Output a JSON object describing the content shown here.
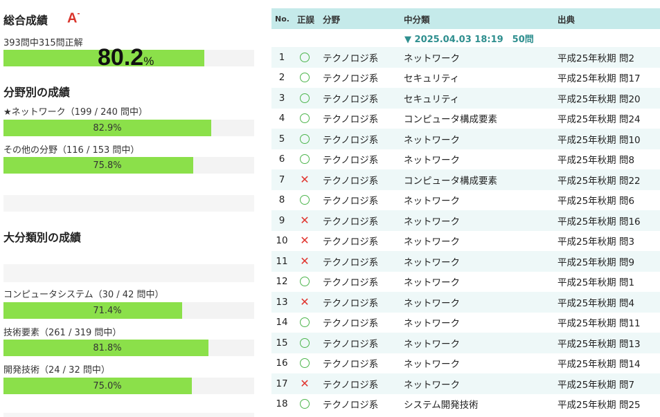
{
  "summary": {
    "title": "総合成績",
    "grade_letter": "A",
    "grade_sign": "-",
    "subtitle": "393問中315問正解",
    "percent_value": "80.2",
    "percent_unit": "%",
    "progress": 0.802
  },
  "field_section": {
    "title": "分野別の成績",
    "items": [
      {
        "label": "★ネットワーク（199 / 240 問中）",
        "percent": "82.9%",
        "progress": 0.829
      },
      {
        "label": "その他の分野（116 / 153 問中）",
        "percent": "75.8%",
        "progress": 0.758
      }
    ]
  },
  "category_section": {
    "title": "大分類別の成績",
    "items": [
      {
        "label": "コンピュータシステム（30 / 42 問中）",
        "percent": "71.4%",
        "progress": 0.714
      },
      {
        "label": "技術要素（261 / 319 問中）",
        "percent": "81.8%",
        "progress": 0.818
      },
      {
        "label": "開発技術（24 / 32 問中）",
        "percent": "75.0%",
        "progress": 0.75
      }
    ]
  },
  "table": {
    "headers": {
      "no": "No.",
      "mark": "正誤",
      "field": "分野",
      "mid": "中分類",
      "source": "出典"
    },
    "session": "▼ 2025.04.03 18:19　50問",
    "rows": [
      {
        "no": "1",
        "ok": true,
        "field": "テクノロジ系",
        "mid": "ネットワーク",
        "source": "平成25年秋期 問2"
      },
      {
        "no": "2",
        "ok": true,
        "field": "テクノロジ系",
        "mid": "セキュリティ",
        "source": "平成25年秋期 問17"
      },
      {
        "no": "3",
        "ok": true,
        "field": "テクノロジ系",
        "mid": "セキュリティ",
        "source": "平成25年秋期 問20"
      },
      {
        "no": "4",
        "ok": true,
        "field": "テクノロジ系",
        "mid": "コンピュータ構成要素",
        "source": "平成25年秋期 問24"
      },
      {
        "no": "5",
        "ok": true,
        "field": "テクノロジ系",
        "mid": "ネットワーク",
        "source": "平成25年秋期 問10"
      },
      {
        "no": "6",
        "ok": true,
        "field": "テクノロジ系",
        "mid": "ネットワーク",
        "source": "平成25年秋期 問8"
      },
      {
        "no": "7",
        "ok": false,
        "field": "テクノロジ系",
        "mid": "コンピュータ構成要素",
        "source": "平成25年秋期 問22"
      },
      {
        "no": "8",
        "ok": true,
        "field": "テクノロジ系",
        "mid": "ネットワーク",
        "source": "平成25年秋期 問6"
      },
      {
        "no": "9",
        "ok": false,
        "field": "テクノロジ系",
        "mid": "ネットワーク",
        "source": "平成25年秋期 問16"
      },
      {
        "no": "10",
        "ok": false,
        "field": "テクノロジ系",
        "mid": "ネットワーク",
        "source": "平成25年秋期 問3"
      },
      {
        "no": "11",
        "ok": false,
        "field": "テクノロジ系",
        "mid": "ネットワーク",
        "source": "平成25年秋期 問9"
      },
      {
        "no": "12",
        "ok": true,
        "field": "テクノロジ系",
        "mid": "ネットワーク",
        "source": "平成25年秋期 問1"
      },
      {
        "no": "13",
        "ok": false,
        "field": "テクノロジ系",
        "mid": "ネットワーク",
        "source": "平成25年秋期 問4"
      },
      {
        "no": "14",
        "ok": true,
        "field": "テクノロジ系",
        "mid": "ネットワーク",
        "source": "平成25年秋期 問11"
      },
      {
        "no": "15",
        "ok": true,
        "field": "テクノロジ系",
        "mid": "ネットワーク",
        "source": "平成25年秋期 問13"
      },
      {
        "no": "16",
        "ok": true,
        "field": "テクノロジ系",
        "mid": "ネットワーク",
        "source": "平成25年秋期 問14"
      },
      {
        "no": "17",
        "ok": false,
        "field": "テクノロジ系",
        "mid": "ネットワーク",
        "source": "平成25年秋期 問7"
      },
      {
        "no": "18",
        "ok": true,
        "field": "テクノロジ系",
        "mid": "システム開発技術",
        "source": "平成25年秋期 問25"
      }
    ]
  },
  "colors": {
    "bar": "#8be04a",
    "header": "#c5eaea",
    "alt_row": "#eef8f8",
    "ok": "#4cb54c",
    "ng": "#e0352f",
    "grade": "#d9342b"
  },
  "icons": {
    "ok": "circle-icon",
    "ng": "cross-icon"
  }
}
